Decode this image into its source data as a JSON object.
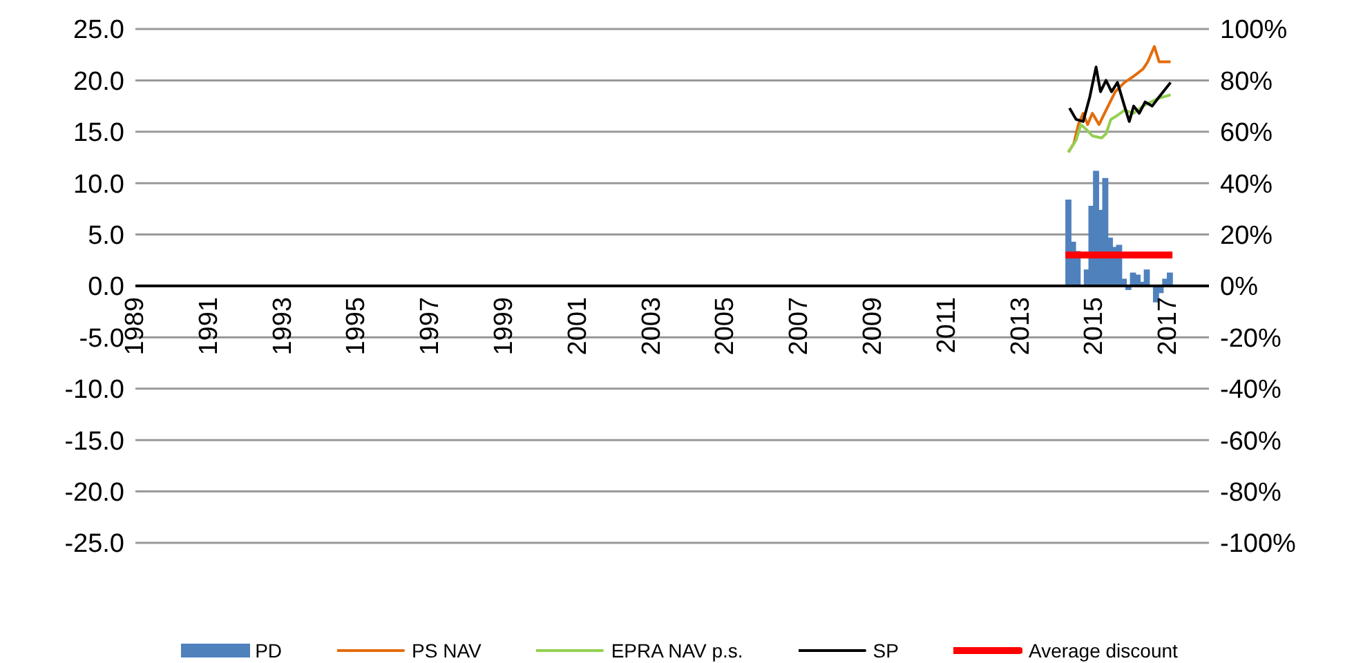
{
  "chart_data": {
    "type": "bar",
    "xlim": [
      1989,
      2018.1
    ],
    "xticks": [
      1989,
      1991,
      1993,
      1995,
      1997,
      1999,
      2001,
      2003,
      2005,
      2007,
      2009,
      2011,
      2013,
      2015,
      2017
    ],
    "ylim": [
      -25,
      25
    ],
    "yticks": [
      {
        "value": -25,
        "label": "-25.0"
      },
      {
        "value": -20,
        "label": "-20.0"
      },
      {
        "value": -15,
        "label": "-15.0"
      },
      {
        "value": -10,
        "label": "-10.0"
      },
      {
        "value": -5,
        "label": "-5.0"
      },
      {
        "value": 0,
        "label": "0.0"
      },
      {
        "value": 5,
        "label": "5.0"
      },
      {
        "value": 10,
        "label": "10.0"
      },
      {
        "value": 15,
        "label": "15.0"
      },
      {
        "value": 20,
        "label": "20.0"
      },
      {
        "value": 25,
        "label": "25.0"
      }
    ],
    "y2lim": [
      -100,
      100
    ],
    "y2ticks": [
      {
        "value": -100,
        "label": "-100%"
      },
      {
        "value": -80,
        "label": "-80%"
      },
      {
        "value": -60,
        "label": "-60%"
      },
      {
        "value": -40,
        "label": "-40%"
      },
      {
        "value": -20,
        "label": "-20%"
      },
      {
        "value": 0,
        "label": "0%"
      },
      {
        "value": 20,
        "label": "20%"
      },
      {
        "value": 40,
        "label": "40%"
      },
      {
        "value": 60,
        "label": "60%"
      },
      {
        "value": 80,
        "label": "80%"
      },
      {
        "value": 100,
        "label": "100%"
      }
    ],
    "grid": "y",
    "legend": "bottom",
    "series": [
      {
        "name": "PD",
        "color": "#4f81bd",
        "x": [
          2014.29,
          2014.415,
          2014.54,
          2014.665,
          2014.79,
          2014.915,
          2015.04,
          2015.165,
          2015.29,
          2015.415,
          2015.54,
          2015.665,
          2015.79,
          2015.915,
          2016.04,
          2016.165,
          2016.29,
          2016.415,
          2016.54,
          2016.665,
          2016.79,
          2016.915,
          2017.04
        ],
        "values": [
          8.4,
          4.3,
          3.4,
          null,
          1.6,
          7.8,
          11.2,
          7.4,
          10.5,
          4.7,
          3.8,
          4.0,
          0.7,
          -0.4,
          1.3,
          1.1,
          0.4,
          1.6,
          null,
          -1.6,
          -0.7,
          0.7,
          1.3
        ]
      },
      {
        "name": "PS NAV",
        "type": "line",
        "color": "#e46c0a",
        "x": [
          2014.29,
          2014.44,
          2014.56,
          2014.69,
          2014.81,
          2014.94,
          2015.12,
          2015.31,
          2015.56,
          2015.81,
          2016.06,
          2016.31,
          2016.44,
          2016.62,
          2016.75,
          2017.06
        ],
        "values": [
          13.0,
          13.9,
          15.7,
          16.8,
          15.7,
          16.8,
          15.7,
          17.1,
          18.9,
          19.8,
          20.4,
          21.1,
          21.8,
          23.3,
          21.8,
          21.8
        ]
      },
      {
        "name": "EPRA NAV p.s.",
        "type": "line",
        "color": "#92d050",
        "x": [
          2014.29,
          2014.5,
          2014.63,
          2014.81,
          2014.94,
          2015.19,
          2015.31,
          2015.44,
          2015.62,
          2015.81,
          2016.06,
          2016.31,
          2016.69,
          2017.06
        ],
        "values": [
          13.0,
          14.2,
          15.7,
          15.1,
          14.6,
          14.4,
          14.8,
          16.2,
          16.6,
          17.1,
          16.8,
          17.5,
          18.2,
          18.6
        ]
      },
      {
        "name": "SP",
        "type": "line",
        "color": "#000000",
        "x": [
          2014.32,
          2014.5,
          2014.69,
          2014.87,
          2015.04,
          2015.16,
          2015.31,
          2015.46,
          2015.62,
          2015.81,
          2015.94,
          2016.06,
          2016.21,
          2016.37,
          2016.56,
          2016.75,
          2017.06
        ],
        "values": [
          17.3,
          16.2,
          16.0,
          18.4,
          21.3,
          18.9,
          20.0,
          18.9,
          19.8,
          17.5,
          16.0,
          17.5,
          16.8,
          17.9,
          17.5,
          18.4,
          19.8
        ]
      },
      {
        "name": "Average discount",
        "type": "line",
        "color": "#ff0000",
        "x": [
          2014.21,
          2017.11
        ],
        "values": [
          3.0,
          3.0
        ]
      }
    ]
  }
}
